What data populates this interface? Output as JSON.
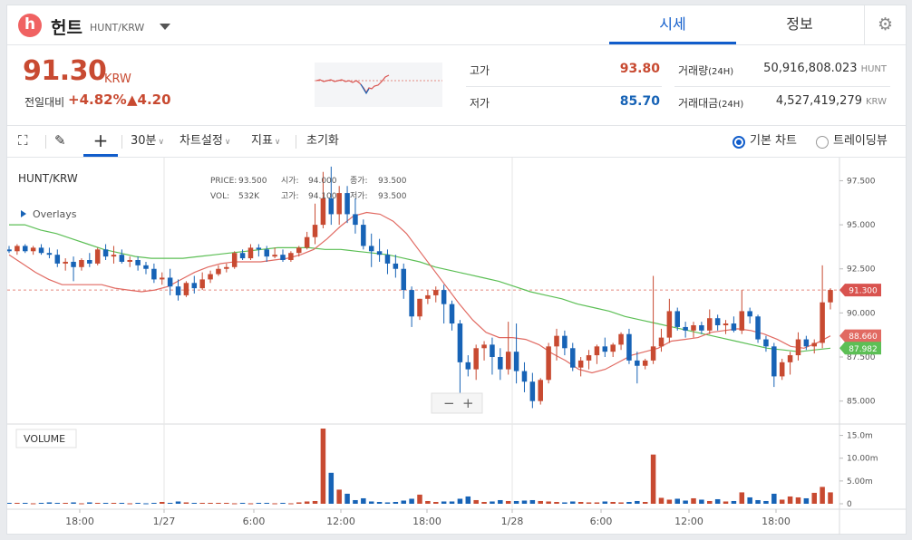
{
  "header": {
    "logo_letter": "h",
    "coin_name": "헌트",
    "pair": "HUNT/KRW",
    "tabs": [
      {
        "label": "시세",
        "active": true
      },
      {
        "label": "정보",
        "active": false
      }
    ]
  },
  "summary": {
    "price": "91.30",
    "price_unit": "KRW",
    "change_label": "전일대비",
    "change_pct": "+4.82%",
    "change_abs": "▲4.20",
    "high_label": "고가",
    "high": "93.80",
    "low_label": "저가",
    "low": "85.70",
    "vol_label": "거래량",
    "vol_period": "(24H)",
    "vol_value": "50,916,808.023",
    "vol_unit": "HUNT",
    "amt_label": "거래대금",
    "amt_period": "(24H)",
    "amt_value": "4,527,419,279",
    "amt_unit": "KRW"
  },
  "toolbar": {
    "interval": "30분",
    "chart_settings": "차트설정",
    "indicators": "지표",
    "reset": "초기화",
    "basic_chart": "기본 차트",
    "tradingview": "트레이딩뷰"
  },
  "chart": {
    "symbol": "HUNT/KRW",
    "overlays_label": "Overlays",
    "ohlc": {
      "price_label": "PRICE:",
      "price": "93.500",
      "open_label": "시가:",
      "open": "94.000",
      "close_label": "종가:",
      "close": "93.500",
      "vol_label": "VOL:",
      "vol": "532K",
      "high_label": "고가:",
      "high": "94.100",
      "low_label": "저가:",
      "low": "93.500"
    },
    "volume_label": "VOLUME",
    "zoom_out": "−",
    "zoom_in": "+",
    "badges": {
      "last": "91.300",
      "ma_short": "88.660",
      "ma_long": "87.982"
    },
    "colors": {
      "up": "#c84a31",
      "down": "#1763b6",
      "ma_short": "#e16a62",
      "ma_long": "#5cbf55",
      "accent": "#115dcb"
    }
  },
  "chart_data": {
    "type": "candlestick",
    "price_axis": {
      "min": 83.8,
      "max": 98.5,
      "ticks": [
        "97.500",
        "95.000",
        "92.500",
        "90.000",
        "87.500",
        "85.000"
      ]
    },
    "volume_axis": {
      "ticks": [
        "15.0m",
        "10.00m",
        "5.00m",
        "0"
      ],
      "max": 17500000
    },
    "x_ticks": [
      "18:00",
      "1/27",
      "6:00",
      "12:00",
      "18:00",
      "1/28",
      "6:00",
      "12:00",
      "18:00"
    ],
    "last_price": 91.3,
    "ma_short": [
      93.3,
      92.8,
      92.3,
      91.9,
      91.6,
      91.6,
      91.6,
      91.6,
      91.4,
      91.3,
      91.2,
      91.3,
      91.5,
      91.9,
      92.3,
      92.6,
      92.8,
      92.9,
      92.9,
      92.9,
      93.0,
      93.1,
      93.3,
      93.6,
      94.2,
      94.9,
      95.5,
      95.7,
      95.6,
      95.2,
      94.5,
      93.5,
      92.5,
      91.5,
      90.5,
      89.6,
      88.9,
      88.6,
      88.6,
      88.5,
      88.2,
      87.7,
      87.3,
      86.8,
      86.6,
      86.8,
      87.2,
      87.6,
      87.8,
      88.0,
      88.4,
      88.5,
      88.6,
      88.9,
      89.0,
      89.1,
      89.0,
      88.8,
      88.5,
      88.1,
      88.0,
      88.3,
      88.7
    ],
    "ma_long": [
      95.0,
      95.0,
      94.7,
      94.5,
      94.2,
      93.9,
      93.6,
      93.4,
      93.2,
      93.1,
      93.1,
      93.1,
      93.2,
      93.3,
      93.4,
      93.5,
      93.6,
      93.7,
      93.7,
      93.7,
      93.6,
      93.6,
      93.5,
      93.4,
      93.3,
      93.1,
      92.9,
      92.6,
      92.4,
      92.2,
      92.0,
      91.8,
      91.5,
      91.2,
      91.0,
      90.8,
      90.5,
      90.3,
      90.1,
      89.8,
      89.6,
      89.4,
      89.2,
      89.0,
      88.8,
      88.6,
      88.4,
      88.2,
      88.0,
      87.9,
      87.8,
      87.9,
      88.0
    ],
    "candles": [
      [
        93.6,
        93.8,
        93.4,
        93.5,
        0.2
      ],
      [
        93.5,
        93.9,
        93.3,
        93.8,
        0.2
      ],
      [
        93.8,
        93.9,
        93.4,
        93.5,
        0.2
      ],
      [
        93.5,
        93.8,
        93.3,
        93.7,
        0.1
      ],
      [
        93.7,
        93.9,
        93.3,
        93.4,
        0.2
      ],
      [
        93.4,
        93.7,
        93.1,
        93.3,
        0.3
      ],
      [
        93.3,
        93.6,
        92.6,
        92.8,
        0.2
      ],
      [
        92.8,
        93.1,
        92.4,
        92.9,
        0.2
      ],
      [
        92.9,
        93.2,
        91.8,
        92.6,
        0.3
      ],
      [
        92.6,
        93.1,
        92.4,
        93.0,
        0.1
      ],
      [
        93.0,
        93.4,
        92.6,
        92.8,
        0.3
      ],
      [
        92.8,
        93.7,
        92.7,
        93.6,
        0.2
      ],
      [
        93.6,
        93.9,
        93.0,
        93.2,
        0.2
      ],
      [
        93.2,
        93.8,
        92.8,
        93.3,
        0.2
      ],
      [
        93.3,
        93.6,
        92.8,
        92.9,
        0.2
      ],
      [
        92.9,
        93.2,
        92.6,
        93.0,
        0.1
      ],
      [
        93.0,
        93.2,
        92.4,
        92.7,
        0.2
      ],
      [
        92.7,
        92.9,
        92.2,
        92.5,
        0.1
      ],
      [
        92.5,
        92.8,
        91.7,
        91.9,
        0.2
      ],
      [
        91.9,
        92.3,
        91.6,
        92.0,
        0.4
      ],
      [
        92.0,
        92.5,
        91.0,
        91.5,
        0.2
      ],
      [
        91.5,
        91.9,
        90.7,
        91.0,
        0.5
      ],
      [
        91.0,
        91.8,
        90.9,
        91.7,
        0.3
      ],
      [
        91.7,
        92.1,
        91.1,
        91.4,
        0.2
      ],
      [
        91.4,
        92.3,
        91.3,
        91.9,
        0.2
      ],
      [
        91.9,
        92.4,
        91.7,
        92.2,
        0.2
      ],
      [
        92.2,
        92.7,
        92.1,
        92.5,
        0.2
      ],
      [
        92.5,
        92.8,
        92.3,
        92.6,
        0.2
      ],
      [
        92.6,
        93.5,
        92.5,
        93.4,
        0.1
      ],
      [
        93.4,
        93.6,
        93.0,
        93.1,
        0.2
      ],
      [
        93.1,
        93.9,
        93.0,
        93.7,
        0.1
      ],
      [
        93.7,
        93.9,
        93.2,
        93.6,
        0.2
      ],
      [
        93.6,
        93.8,
        92.9,
        93.2,
        0.2
      ],
      [
        93.2,
        93.7,
        93.1,
        93.3,
        0.1
      ],
      [
        93.3,
        93.6,
        92.9,
        93.0,
        0.2
      ],
      [
        93.0,
        93.5,
        92.9,
        93.4,
        0.1
      ],
      [
        93.4,
        93.8,
        93.2,
        93.7,
        0.3
      ],
      [
        93.7,
        94.6,
        93.6,
        94.3,
        0.5
      ],
      [
        94.3,
        96.2,
        93.9,
        95.0,
        0.6
      ],
      [
        95.0,
        98.0,
        94.8,
        96.5,
        16.5
      ],
      [
        96.5,
        98.3,
        95.0,
        95.6,
        6.8
      ],
      [
        95.6,
        97.2,
        95.0,
        96.8,
        3.1
      ],
      [
        96.8,
        97.2,
        95.1,
        95.6,
        2.2
      ],
      [
        95.6,
        96.5,
        94.5,
        95.0,
        0.8
      ],
      [
        95.0,
        95.3,
        93.6,
        93.8,
        1.2
      ],
      [
        93.8,
        94.5,
        92.6,
        93.5,
        0.5
      ],
      [
        93.5,
        94.2,
        92.9,
        93.3,
        0.4
      ],
      [
        93.3,
        93.6,
        92.2,
        92.8,
        0.3
      ],
      [
        92.8,
        93.3,
        92.0,
        92.5,
        0.4
      ],
      [
        92.5,
        92.8,
        90.8,
        91.3,
        0.7
      ],
      [
        91.3,
        91.5,
        89.2,
        89.8,
        1.1
      ],
      [
        89.8,
        90.8,
        89.6,
        90.8,
        2.0
      ],
      [
        90.8,
        91.3,
        90.5,
        91.0,
        0.6
      ],
      [
        91.0,
        91.5,
        90.6,
        91.3,
        0.4
      ],
      [
        91.3,
        91.6,
        89.4,
        90.5,
        0.5
      ],
      [
        90.5,
        90.7,
        89.0,
        89.4,
        0.5
      ],
      [
        89.4,
        89.6,
        85.2,
        87.2,
        1.1
      ],
      [
        87.2,
        87.6,
        86.4,
        86.8,
        1.6
      ],
      [
        86.8,
        88.2,
        86.2,
        88.0,
        0.8
      ],
      [
        88.0,
        88.4,
        87.3,
        88.2,
        0.4
      ],
      [
        88.2,
        88.6,
        86.5,
        87.5,
        0.5
      ],
      [
        87.5,
        88.0,
        86.2,
        86.8,
        0.8
      ],
      [
        86.8,
        89.5,
        86.5,
        87.8,
        0.6
      ],
      [
        87.8,
        89.4,
        86.0,
        86.7,
        0.6
      ],
      [
        86.7,
        87.2,
        85.5,
        86.1,
        0.7
      ],
      [
        86.1,
        86.6,
        84.6,
        85.0,
        0.8
      ],
      [
        85.0,
        86.3,
        84.8,
        86.2,
        0.6
      ],
      [
        86.2,
        88.3,
        86.0,
        88.1,
        0.5
      ],
      [
        88.1,
        89.1,
        87.3,
        88.7,
        0.4
      ],
      [
        88.7,
        89.0,
        87.6,
        88.0,
        0.3
      ],
      [
        88.0,
        88.3,
        86.7,
        86.9,
        0.5
      ],
      [
        86.9,
        87.5,
        86.4,
        87.3,
        0.4
      ],
      [
        87.3,
        87.9,
        86.8,
        87.6,
        0.3
      ],
      [
        87.6,
        88.2,
        87.1,
        88.1,
        0.3
      ],
      [
        88.1,
        88.6,
        87.5,
        87.8,
        0.5
      ],
      [
        87.8,
        88.3,
        87.5,
        88.2,
        0.4
      ],
      [
        88.2,
        88.9,
        87.9,
        88.8,
        0.3
      ],
      [
        88.8,
        89.1,
        87.1,
        87.3,
        0.4
      ],
      [
        87.3,
        87.8,
        86.0,
        87.0,
        0.6
      ],
      [
        87.0,
        87.4,
        86.8,
        87.3,
        0.4
      ],
      [
        87.3,
        92.1,
        87.1,
        88.1,
        10.8
      ],
      [
        88.1,
        89.1,
        87.8,
        88.6,
        1.3
      ],
      [
        88.6,
        90.8,
        88.3,
        90.1,
        0.9
      ],
      [
        90.1,
        90.3,
        89.0,
        89.2,
        1.1
      ],
      [
        89.2,
        89.5,
        88.6,
        89.0,
        0.7
      ],
      [
        89.0,
        89.5,
        88.6,
        89.3,
        1.2
      ],
      [
        89.3,
        89.5,
        88.8,
        89.0,
        0.9
      ],
      [
        89.0,
        90.2,
        88.8,
        89.7,
        0.6
      ],
      [
        89.7,
        89.9,
        89.0,
        89.3,
        1.0
      ],
      [
        89.3,
        89.6,
        88.8,
        89.4,
        0.5
      ],
      [
        89.4,
        89.8,
        88.9,
        89.0,
        0.6
      ],
      [
        89.0,
        91.3,
        88.8,
        90.1,
        2.5
      ],
      [
        90.1,
        90.3,
        89.4,
        89.8,
        1.4
      ],
      [
        89.8,
        89.9,
        88.3,
        88.5,
        0.8
      ],
      [
        88.5,
        88.7,
        87.8,
        88.1,
        0.6
      ],
      [
        88.1,
        88.3,
        85.8,
        86.4,
        2.2
      ],
      [
        86.4,
        87.4,
        86.2,
        87.2,
        0.9
      ],
      [
        87.2,
        87.8,
        86.5,
        87.6,
        1.6
      ],
      [
        87.6,
        88.9,
        87.3,
        88.5,
        1.4
      ],
      [
        88.5,
        88.7,
        87.9,
        88.1,
        1.2
      ],
      [
        88.1,
        88.5,
        87.7,
        88.3,
        2.4
      ],
      [
        88.3,
        92.7,
        88.0,
        90.6,
        3.7
      ],
      [
        90.6,
        91.4,
        90.2,
        91.3,
        2.5
      ]
    ]
  }
}
